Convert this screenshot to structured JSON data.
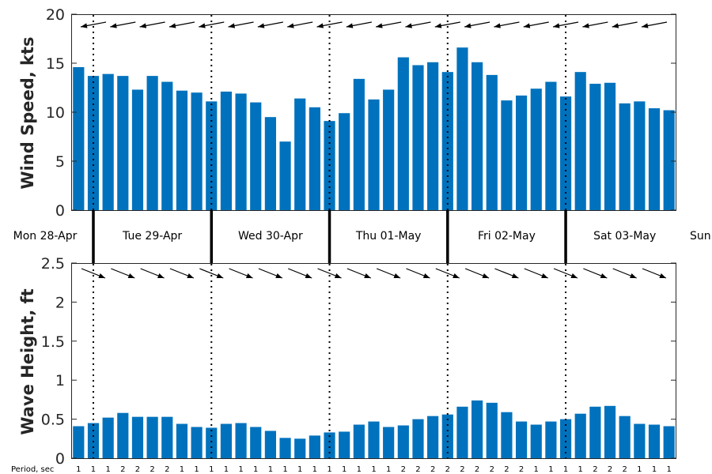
{
  "colors": {
    "bar": "#0072bd",
    "axis": "#262626",
    "arrow": "#000000"
  },
  "chart_data": [
    {
      "type": "bar",
      "ylabel": "Wind Speed, kts",
      "ylim": [
        0,
        20
      ],
      "yticks": [
        "0",
        "5",
        "10",
        "15",
        "20"
      ],
      "grid": false,
      "values": [
        14.6,
        13.7,
        13.9,
        13.7,
        12.3,
        13.7,
        13.1,
        12.2,
        12.0,
        11.1,
        12.1,
        11.9,
        11.0,
        9.5,
        7.0,
        11.4,
        10.5,
        9.1,
        9.9,
        13.4,
        11.3,
        12.3,
        15.6,
        14.8,
        15.1,
        14.1,
        16.6,
        15.1,
        13.8,
        11.2,
        11.7,
        12.4,
        13.1,
        11.6,
        14.1,
        12.9,
        13.0,
        10.9,
        11.1,
        10.4,
        10.2
      ],
      "direction_arrows": "wind direction arrows, one per bar, pointing roughly west"
    },
    {
      "type": "bar",
      "ylabel": "Wave Height, ft",
      "ylim": [
        0,
        2.5
      ],
      "yticks": [
        "0",
        "0.5",
        "1",
        "1.5",
        "2",
        "2.5"
      ],
      "grid": false,
      "values": [
        0.41,
        0.45,
        0.52,
        0.58,
        0.53,
        0.53,
        0.53,
        0.44,
        0.4,
        0.39,
        0.44,
        0.45,
        0.4,
        0.35,
        0.26,
        0.25,
        0.29,
        0.33,
        0.34,
        0.43,
        0.47,
        0.4,
        0.42,
        0.5,
        0.54,
        0.56,
        0.66,
        0.74,
        0.71,
        0.59,
        0.47,
        0.43,
        0.47,
        0.5,
        0.57,
        0.66,
        0.67,
        0.54,
        0.44,
        0.43,
        0.41
      ],
      "period_label": "Period, sec",
      "periods": [
        "1",
        "1",
        "1",
        "2",
        "2",
        "2",
        "2",
        "1",
        "1",
        "1",
        "1",
        "1",
        "1",
        "1",
        "1",
        "1",
        "1",
        "1",
        "1",
        "1",
        "1",
        "1",
        "2",
        "2",
        "2",
        "2",
        "2",
        "2",
        "2",
        "2",
        "2",
        "1",
        "1",
        "1",
        "1",
        "2",
        "2",
        "2",
        "1",
        "1",
        "1"
      ],
      "direction_arrows": "wave direction arrows, one per bar, pointing toward the southeast"
    }
  ],
  "days": [
    "Mon 28-Apr",
    "Tue 29-Apr",
    "Wed 30-Apr",
    "Thu 01-May",
    "Fri 02-May",
    "Sat 03-May",
    "Sun"
  ]
}
